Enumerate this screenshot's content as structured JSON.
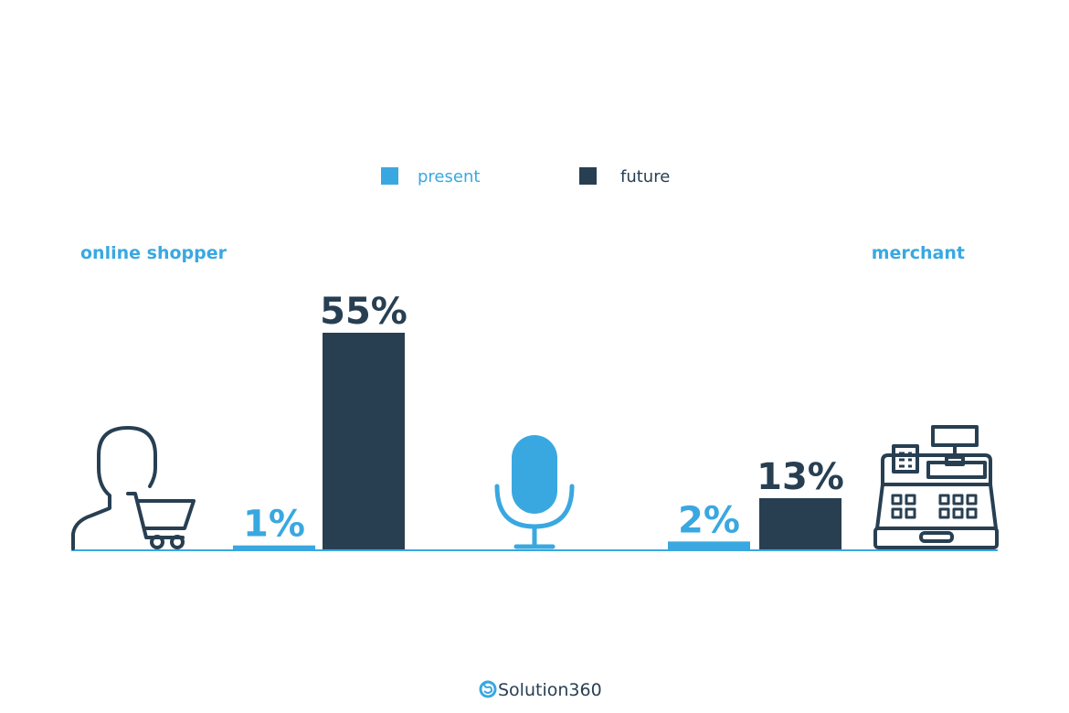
{
  "colors": {
    "present": "#3aa8e0",
    "future": "#283f52",
    "icon_dark": "#283f52",
    "icon_blue": "#3aa8e0",
    "baseline": "#3aa8e0"
  },
  "icons": {
    "left": "shopper-with-cart-icon",
    "center": "microphone-icon",
    "right": "cash-register-icon",
    "brand": "solution360-logo-icon"
  },
  "legend": {
    "items": [
      {
        "name": "present",
        "color": "#3aa8e0"
      },
      {
        "name": "future",
        "color": "#283f52"
      }
    ],
    "placement": "top-center"
  },
  "chart_data": {
    "type": "bar",
    "categories": [
      "online shopper",
      "merchant"
    ],
    "series": [
      {
        "name": "present",
        "values": [
          1,
          2
        ],
        "labels": [
          "1%",
          "2%"
        ]
      },
      {
        "name": "future",
        "values": [
          55,
          13
        ],
        "labels": [
          "55%",
          "13%"
        ]
      }
    ],
    "title": "",
    "xlabel": "",
    "ylabel": "",
    "ylim": [
      0,
      55
    ],
    "grid": false,
    "legend": "top-center"
  },
  "footer": {
    "brand": "Solution360"
  }
}
